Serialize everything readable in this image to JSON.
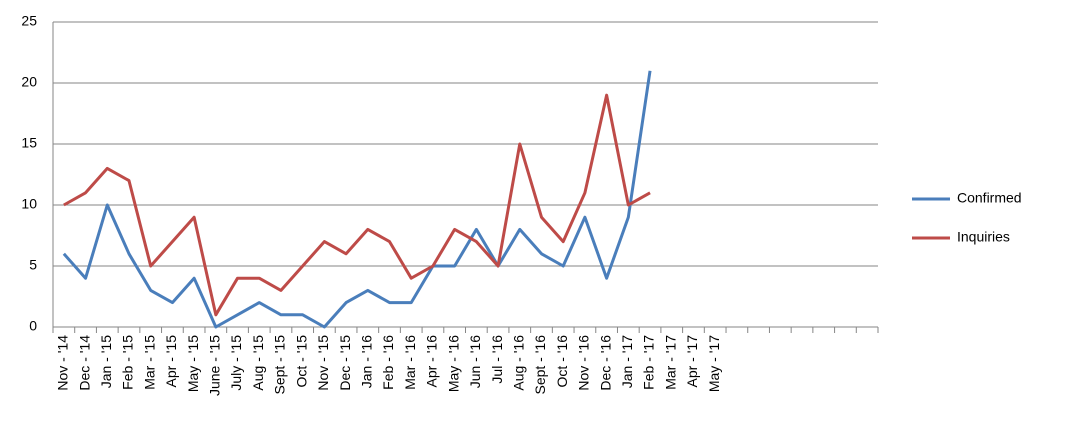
{
  "chart_data": {
    "type": "line",
    "categories": [
      "Nov - '14",
      "Dec - '14",
      "Jan - '15",
      "Feb - '15",
      "Mar - '15",
      "Apr - '15",
      "May - '15",
      "June - '15",
      "July - '15",
      "Aug - '15",
      "Sept - '15",
      "Oct - '15",
      "Nov - '15",
      "Dec - '15",
      "Jan - '16",
      "Feb - '16",
      "Mar - '16",
      "Apr - '16",
      "May - '16",
      "Jun - '16",
      "Jul - '16",
      "Aug - '16",
      "Sept - '16",
      "Oct - '16",
      "Nov - '16",
      "Dec - '16",
      "Jan - '17",
      "Feb - '17",
      "Mar - '17",
      "Apr - '17",
      "May - '17",
      null,
      null,
      null,
      null,
      null,
      null,
      null
    ],
    "series": [
      {
        "name": "Confirmed",
        "color": "#4a7ebb",
        "values": [
          6,
          4,
          10,
          6,
          3,
          2,
          4,
          0,
          1,
          2,
          1,
          1,
          0,
          2,
          3,
          2,
          2,
          5,
          5,
          8,
          5,
          8,
          6,
          5,
          9,
          4,
          9,
          21,
          null,
          null,
          null,
          null,
          null,
          null,
          null,
          null,
          null,
          null
        ]
      },
      {
        "name": "Inquiries",
        "color": "#be4b48",
        "values": [
          10,
          11,
          13,
          12,
          5,
          7,
          9,
          1,
          4,
          4,
          3,
          5,
          7,
          6,
          8,
          7,
          4,
          5,
          8,
          7,
          5,
          15,
          9,
          7,
          11,
          19,
          10,
          11,
          null,
          null,
          null,
          null,
          null,
          null,
          null,
          null,
          null,
          null
        ]
      }
    ],
    "ylim": [
      0,
      25
    ],
    "yticks": [
      0,
      5,
      10,
      15,
      20,
      25
    ],
    "grid": true,
    "legend": "right"
  }
}
